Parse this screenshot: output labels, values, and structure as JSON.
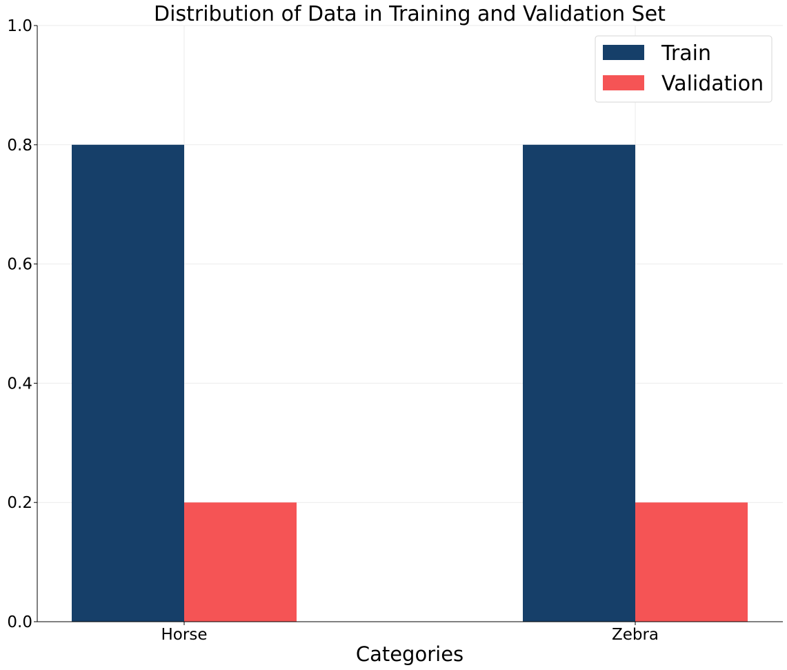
{
  "chart_data": {
    "type": "bar",
    "title": "Distribution of Data in Training and Validation Set",
    "xlabel": "Categories",
    "ylabel": "",
    "categories": [
      "Horse",
      "Zebra"
    ],
    "series": [
      {
        "name": "Train",
        "values": [
          0.8,
          0.8
        ],
        "color": "#163f69"
      },
      {
        "name": "Validation",
        "values": [
          0.2,
          0.2
        ],
        "color": "#f55455"
      }
    ],
    "ylim": [
      0,
      1.0
    ],
    "yticks": [
      "0.0",
      "0.2",
      "0.4",
      "0.6",
      "0.8",
      "1.0"
    ],
    "grid": true,
    "legend": "top-right"
  }
}
